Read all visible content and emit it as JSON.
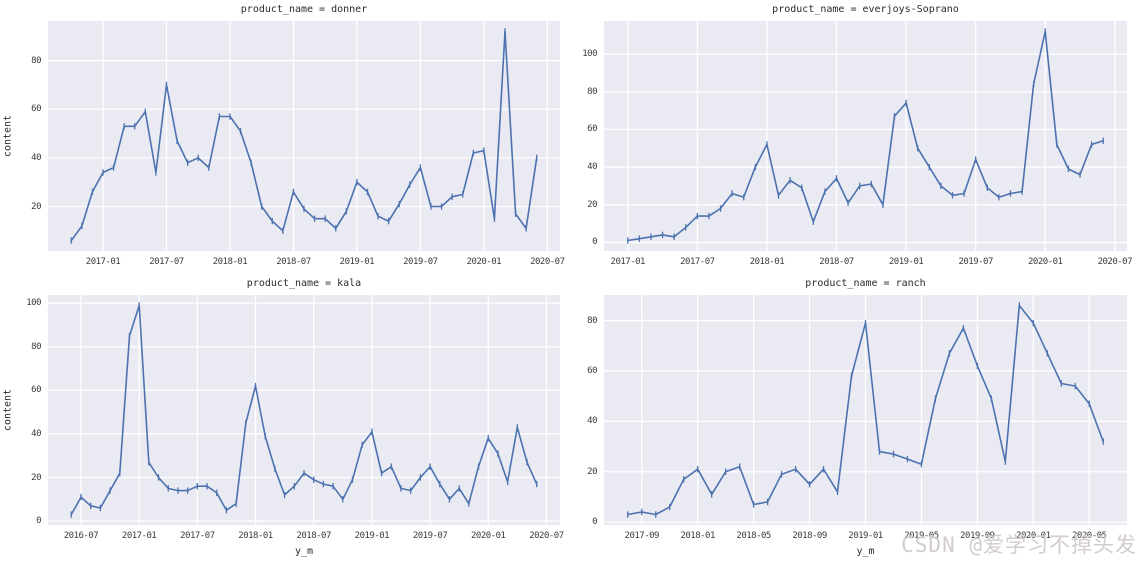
{
  "page": {
    "background": "#ffffff",
    "plot_background": "#eaeaf2",
    "grid_color": "#ffffff",
    "line_color": "#4c72b0",
    "text_color": "#2b2b2b"
  },
  "watermark": {
    "text": "CSDN @爱学习不掉头发",
    "color": "#d2cccc"
  },
  "chart_data": [
    {
      "type": "line",
      "title": "product_name = donner",
      "ylabel": "content",
      "xlabel": "",
      "series_name": "donner",
      "freq": "monthly",
      "start": "2016-10",
      "values": [
        6,
        12,
        26,
        34,
        36,
        53,
        53,
        59,
        34,
        70,
        47,
        38,
        40,
        36,
        57,
        57,
        51,
        38,
        20,
        14,
        10,
        26,
        19,
        15,
        15,
        11,
        18,
        30,
        26,
        16,
        14,
        21,
        29,
        36,
        20,
        20,
        24,
        25,
        42,
        43,
        15,
        92,
        17,
        11,
        40
      ],
      "xticks": [
        {
          "label": "2017-01",
          "m": 3
        },
        {
          "label": "2017-07",
          "m": 9
        },
        {
          "label": "2018-01",
          "m": 15
        },
        {
          "label": "2018-07",
          "m": 21
        },
        {
          "label": "2019-01",
          "m": 27
        },
        {
          "label": "2019-07",
          "m": 33
        },
        {
          "label": "2020-01",
          "m": 39
        },
        {
          "label": "2020-07",
          "m": 45
        }
      ],
      "yticks": [
        20,
        40,
        60,
        80
      ],
      "grid": true,
      "legend": "none"
    },
    {
      "type": "line",
      "title": "product_name = everjoys-Soprano",
      "ylabel": "",
      "xlabel": "",
      "series_name": "everjoys-Soprano",
      "freq": "monthly",
      "start": "2017-01",
      "values": [
        1,
        2,
        3,
        4,
        3,
        8,
        14,
        14,
        18,
        26,
        24,
        40,
        52,
        25,
        33,
        29,
        11,
        27,
        34,
        21,
        30,
        31,
        20,
        67,
        74,
        50,
        40,
        30,
        25,
        26,
        44,
        29,
        24,
        26,
        27,
        84,
        112,
        52,
        39,
        36,
        52,
        54
      ],
      "xticks": [
        {
          "label": "2017-01",
          "m": 0
        },
        {
          "label": "2017-07",
          "m": 6
        },
        {
          "label": "2018-01",
          "m": 12
        },
        {
          "label": "2018-07",
          "m": 18
        },
        {
          "label": "2019-01",
          "m": 24
        },
        {
          "label": "2019-07",
          "m": 30
        },
        {
          "label": "2020-01",
          "m": 36
        },
        {
          "label": "2020-07",
          "m": 42
        }
      ],
      "yticks": [
        0,
        20,
        40,
        60,
        80,
        100
      ],
      "grid": true,
      "legend": "none"
    },
    {
      "type": "line",
      "title": "product_name = kala",
      "ylabel": "content",
      "xlabel": "y_m",
      "series_name": "kala",
      "freq": "monthly",
      "start": "2016-06",
      "values": [
        3,
        11,
        7,
        6,
        14,
        22,
        85,
        99,
        27,
        20,
        15,
        14,
        14,
        16,
        16,
        13,
        5,
        8,
        45,
        62,
        39,
        24,
        12,
        16,
        22,
        19,
        17,
        16,
        10,
        19,
        35,
        41,
        22,
        25,
        15,
        14,
        20,
        25,
        17,
        10,
        15,
        8,
        25,
        38,
        31,
        18,
        43,
        27,
        17
      ],
      "xticks": [
        {
          "label": "2016-07",
          "m": 1
        },
        {
          "label": "2017-01",
          "m": 7
        },
        {
          "label": "2017-07",
          "m": 13
        },
        {
          "label": "2018-01",
          "m": 19
        },
        {
          "label": "2018-07",
          "m": 25
        },
        {
          "label": "2019-01",
          "m": 31
        },
        {
          "label": "2019-07",
          "m": 37
        },
        {
          "label": "2020-01",
          "m": 43
        },
        {
          "label": "2020-07",
          "m": 49
        }
      ],
      "yticks": [
        0,
        20,
        40,
        60,
        80,
        100
      ],
      "grid": true,
      "legend": "none"
    },
    {
      "type": "line",
      "title": "product_name = ranch",
      "ylabel": "",
      "xlabel": "y_m",
      "series_name": "ranch",
      "freq": "monthly",
      "start": "2017-08",
      "values": [
        3,
        4,
        3,
        6,
        17,
        21,
        11,
        20,
        22,
        7,
        8,
        19,
        21,
        15,
        21,
        12,
        58,
        79,
        28,
        27,
        25,
        23,
        49,
        67,
        77,
        62,
        49,
        24,
        86,
        79,
        67,
        55,
        54,
        47,
        32
      ],
      "xticks": [
        {
          "label": "2017-09",
          "m": 1
        },
        {
          "label": "2018-01",
          "m": 5
        },
        {
          "label": "2018-05",
          "m": 9
        },
        {
          "label": "2018-09",
          "m": 13
        },
        {
          "label": "2019-01",
          "m": 17
        },
        {
          "label": "2019-05",
          "m": 21
        },
        {
          "label": "2019-09",
          "m": 25
        },
        {
          "label": "2020-01",
          "m": 29
        },
        {
          "label": "2020-05",
          "m": 33
        }
      ],
      "yticks": [
        0,
        20,
        40,
        60,
        80
      ],
      "grid": true,
      "legend": "none"
    }
  ]
}
